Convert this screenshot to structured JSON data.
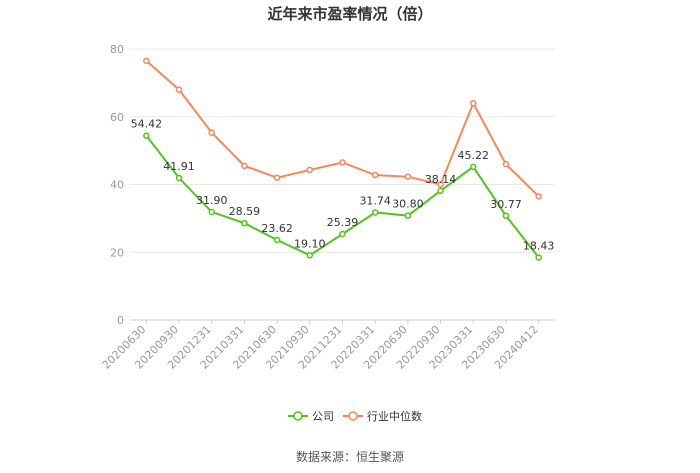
{
  "title": "近年来市盈率情况（倍）",
  "source": "数据来源：恒生聚源",
  "chart_data": {
    "type": "line",
    "title": "近年来市盈率情况（倍）",
    "categories": [
      "20200630",
      "20200930",
      "20201231",
      "20210331",
      "20210630",
      "20210930",
      "20211231",
      "20220331",
      "20220630",
      "20220930",
      "20230331",
      "20230630",
      "20240412"
    ],
    "ylim": [
      0,
      80
    ],
    "yticks": [
      0,
      20,
      40,
      60,
      80
    ],
    "grid": true,
    "legend_position": "bottom",
    "series": [
      {
        "name": "公司",
        "color": "#52c41a",
        "values": [
          54.42,
          41.91,
          31.9,
          28.59,
          23.62,
          19.1,
          25.39,
          31.74,
          30.8,
          38.14,
          45.22,
          30.77,
          18.43
        ],
        "labels": [
          "54.42",
          "41.91",
          "31.90",
          "28.59",
          "23.62",
          "19.10",
          "25.39",
          "31.74",
          "30.80",
          "38.14",
          "45.22",
          "30.77",
          "18.43"
        ]
      },
      {
        "name": "行业中位数",
        "color": "#f5875a",
        "values": [
          76.5,
          68.0,
          55.3,
          45.5,
          42.0,
          44.3,
          46.5,
          42.8,
          42.3,
          40.0,
          64.0,
          46.0,
          36.5
        ]
      }
    ]
  }
}
